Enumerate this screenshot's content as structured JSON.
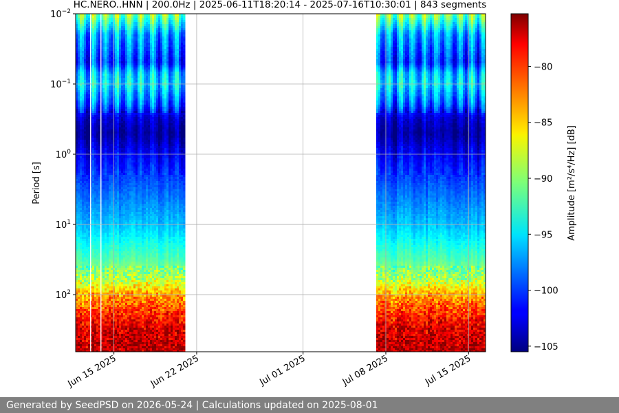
{
  "chart_data": {
    "type": "heatmap",
    "title": "HC.NERO..HNN | 200.0Hz | 2025-06-11T18:20:14 - 2025-07-16T10:30:01 | 843 segments",
    "xlabel": "",
    "ylabel": "Period [s]",
    "y_scale": "log",
    "y_inverted": true,
    "ylim": [
      0.01,
      650
    ],
    "x_range": [
      "2025-06-11T18:20:14",
      "2025-07-16T10:30:01"
    ],
    "x_ticks": [
      {
        "date": "2025-06-15",
        "label": "Jun 15 2025"
      },
      {
        "date": "2025-06-22",
        "label": "Jun 22 2025"
      },
      {
        "date": "2025-07-01",
        "label": "Jul 01 2025"
      },
      {
        "date": "2025-07-08",
        "label": "Jul 08 2025"
      },
      {
        "date": "2025-07-15",
        "label": "Jul 15 2025"
      }
    ],
    "y_ticks": [
      {
        "value": 0.01,
        "base": "10",
        "exp": "−2"
      },
      {
        "value": 0.1,
        "base": "10",
        "exp": "−1"
      },
      {
        "value": 1,
        "base": "10",
        "exp": "0"
      },
      {
        "value": 10,
        "base": "10",
        "exp": "1"
      },
      {
        "value": 100,
        "base": "10",
        "exp": "2"
      }
    ],
    "grid": true,
    "data_intervals": [
      {
        "start": "2025-06-11T18:20:14",
        "end": "2025-06-21T00:00:00"
      },
      {
        "start": "2025-07-07T05:00:00",
        "end": "2025-07-16T10:30:01"
      }
    ],
    "colorbar": {
      "label": "Amplitude [m²/s⁴/Hz] [dB]",
      "colormap": "jet",
      "range": [
        -105.5,
        -75.3
      ],
      "ticks": [
        -80,
        -85,
        -90,
        -95,
        -100,
        -105
      ],
      "tick_labels": [
        "−80",
        "−85",
        "−90",
        "−95",
        "−100",
        "−105"
      ]
    },
    "psd_profile": {
      "period": [
        0.01,
        0.02,
        0.05,
        0.07,
        0.1,
        0.2,
        0.3,
        0.5,
        1,
        3,
        10,
        30,
        60,
        100,
        200,
        300,
        650
      ],
      "amplitude_db": [
        -90,
        -97,
        -100,
        -96,
        -95,
        -99,
        -103,
        -104.5,
        -102,
        -99,
        -96,
        -92,
        -89,
        -84,
        -80,
        -78,
        -77
      ]
    }
  },
  "footer": {
    "text": "Generated by SeedPSD on 2026-05-24 | Calculations updated on 2025-08-01"
  }
}
